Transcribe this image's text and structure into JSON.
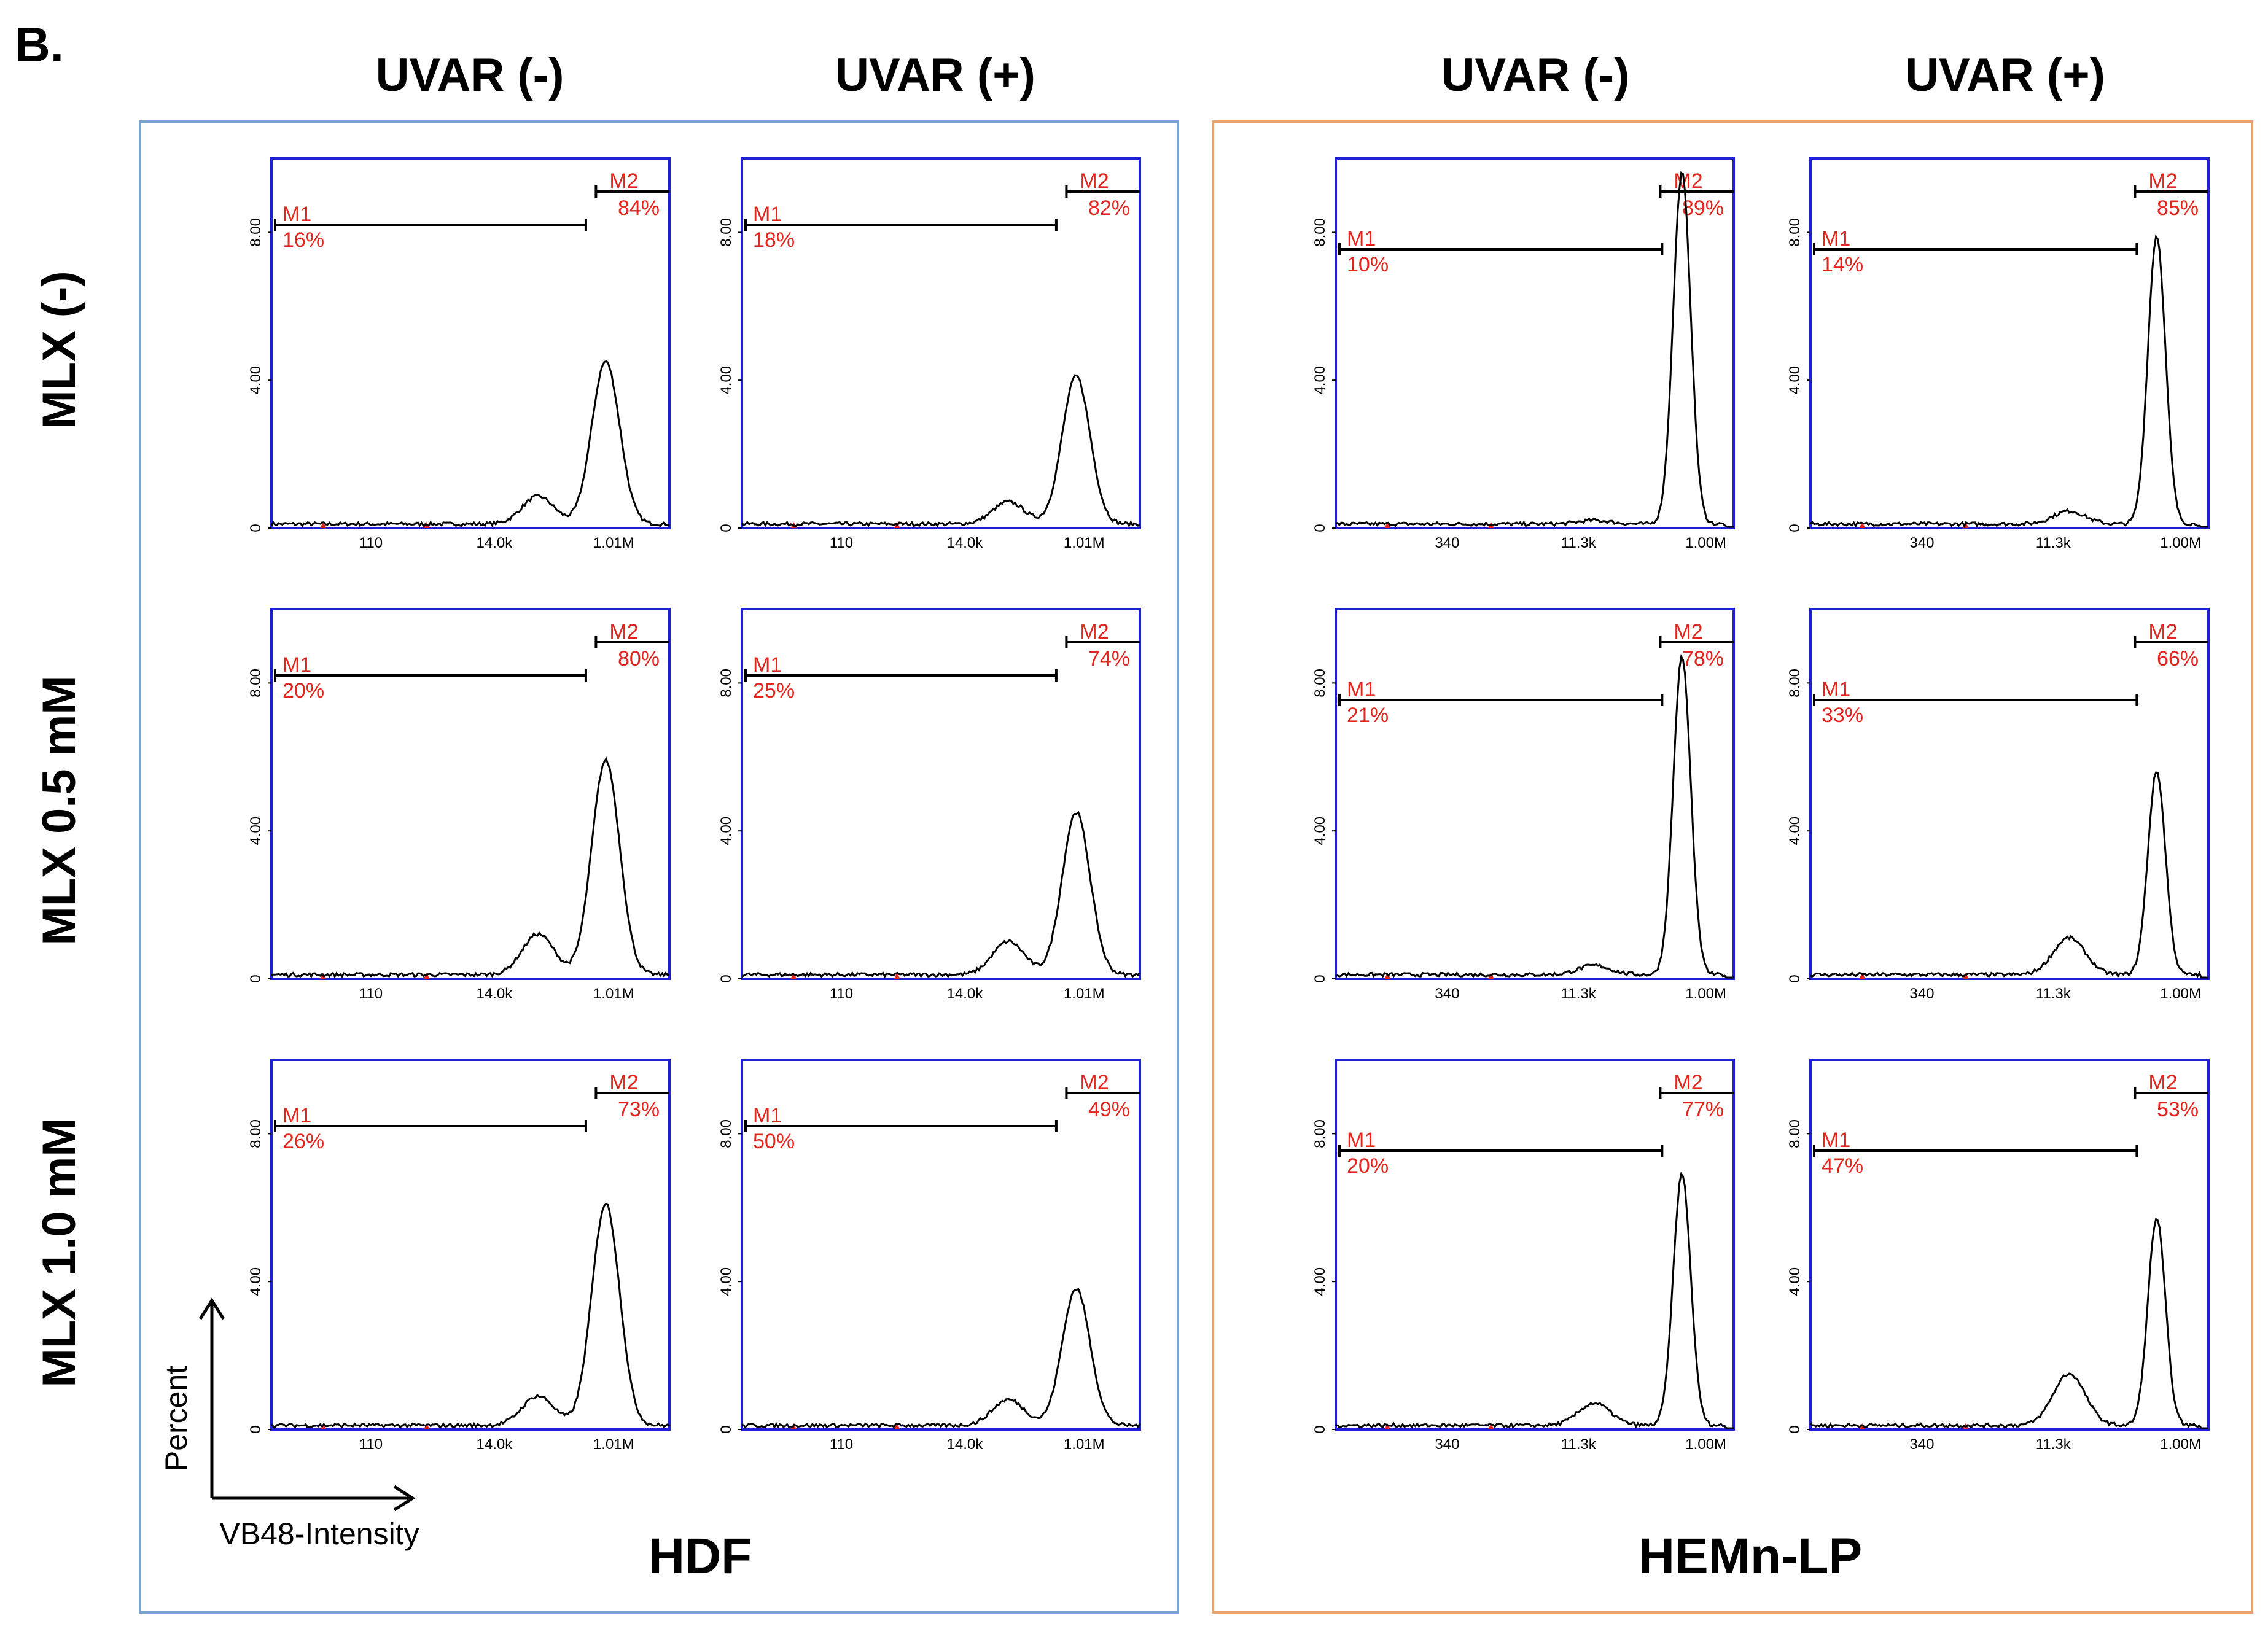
{
  "panel_letter": "B.",
  "column_headers": [
    "UVAR (-)",
    "UVAR (+)",
    "UVAR (-)",
    "UVAR (+)"
  ],
  "row_labels": [
    "MLX (-)",
    "MLX 0.5 mM",
    "MLX 1.0 mM"
  ],
  "group_labels": [
    "HDF",
    "HEMn-LP"
  ],
  "axis_labels": {
    "x": "VB48-Intensity",
    "y": "Percent"
  },
  "y_ticks": [
    "0",
    "4.00",
    "8.00"
  ],
  "x_ticks_hdf": [
    "110",
    "14.0k",
    "1.01M"
  ],
  "x_ticks_hemn": [
    "340",
    "11.3k",
    "1.00M"
  ],
  "marker_names": [
    "M1",
    "M2"
  ],
  "colors": {
    "hdf_border": "#7aa3cf",
    "hemn_border": "#e8a470",
    "plot_border": "#1f1fd6",
    "marker_text": "#e0261e",
    "trace": "#000000"
  },
  "chart_data": [
    {
      "type": "area",
      "cell_type": "HDF",
      "uvar": "UVAR (-)",
      "mlx": "MLX (-)",
      "M1": "16%",
      "M2": "84%",
      "ylim": [
        0,
        10
      ],
      "peak": 4.4,
      "shoulder": 0.75
    },
    {
      "type": "area",
      "cell_type": "HDF",
      "uvar": "UVAR (+)",
      "mlx": "MLX (-)",
      "M1": "18%",
      "M2": "82%",
      "ylim": [
        0,
        10
      ],
      "peak": 4.0,
      "shoulder": 0.6
    },
    {
      "type": "area",
      "cell_type": "HEMn-LP",
      "uvar": "UVAR (-)",
      "mlx": "MLX (-)",
      "M1": "10%",
      "M2": "89%",
      "ylim": [
        0,
        10
      ],
      "peak": 9.5,
      "shoulder": 0.1
    },
    {
      "type": "area",
      "cell_type": "HEMn-LP",
      "uvar": "UVAR (+)",
      "mlx": "MLX (-)",
      "M1": "14%",
      "M2": "85%",
      "ylim": [
        0,
        10
      ],
      "peak": 7.8,
      "shoulder": 0.35
    },
    {
      "type": "area",
      "cell_type": "HDF",
      "uvar": "UVAR (-)",
      "mlx": "MLX 0.5 mM",
      "M1": "20%",
      "M2": "80%",
      "ylim": [
        0,
        10
      ],
      "peak": 5.8,
      "shoulder": 1.1
    },
    {
      "type": "area",
      "cell_type": "HDF",
      "uvar": "UVAR (+)",
      "mlx": "MLX 0.5 mM",
      "M1": "25%",
      "M2": "74%",
      "ylim": [
        0,
        10
      ],
      "peak": 4.4,
      "shoulder": 0.9
    },
    {
      "type": "area",
      "cell_type": "HEMn-LP",
      "uvar": "UVAR (-)",
      "mlx": "MLX 0.5 mM",
      "M1": "21%",
      "M2": "78%",
      "ylim": [
        0,
        10
      ],
      "peak": 8.6,
      "shoulder": 0.25
    },
    {
      "type": "area",
      "cell_type": "HEMn-LP",
      "uvar": "UVAR (+)",
      "mlx": "MLX 0.5 mM",
      "M1": "33%",
      "M2": "66%",
      "ylim": [
        0,
        10
      ],
      "peak": 5.5,
      "shoulder": 1.0
    },
    {
      "type": "area",
      "cell_type": "HDF",
      "uvar": "UVAR (-)",
      "mlx": "MLX 1.0 mM",
      "M1": "26%",
      "M2": "73%",
      "ylim": [
        0,
        10
      ],
      "peak": 6.0,
      "shoulder": 0.8
    },
    {
      "type": "area",
      "cell_type": "HDF",
      "uvar": "UVAR (+)",
      "mlx": "MLX 1.0 mM",
      "M1": "50%",
      "M2": "49%",
      "ylim": [
        0,
        10
      ],
      "peak": 3.7,
      "shoulder": 0.7
    },
    {
      "type": "area",
      "cell_type": "HEMn-LP",
      "uvar": "UVAR (-)",
      "mlx": "MLX 1.0 mM",
      "M1": "20%",
      "M2": "77%",
      "ylim": [
        0,
        10
      ],
      "peak": 6.8,
      "shoulder": 0.6
    },
    {
      "type": "area",
      "cell_type": "HEMn-LP",
      "uvar": "UVAR (+)",
      "mlx": "MLX 1.0 mM",
      "M1": "47%",
      "M2": "53%",
      "ylim": [
        0,
        10
      ],
      "peak": 5.6,
      "shoulder": 1.4
    }
  ]
}
